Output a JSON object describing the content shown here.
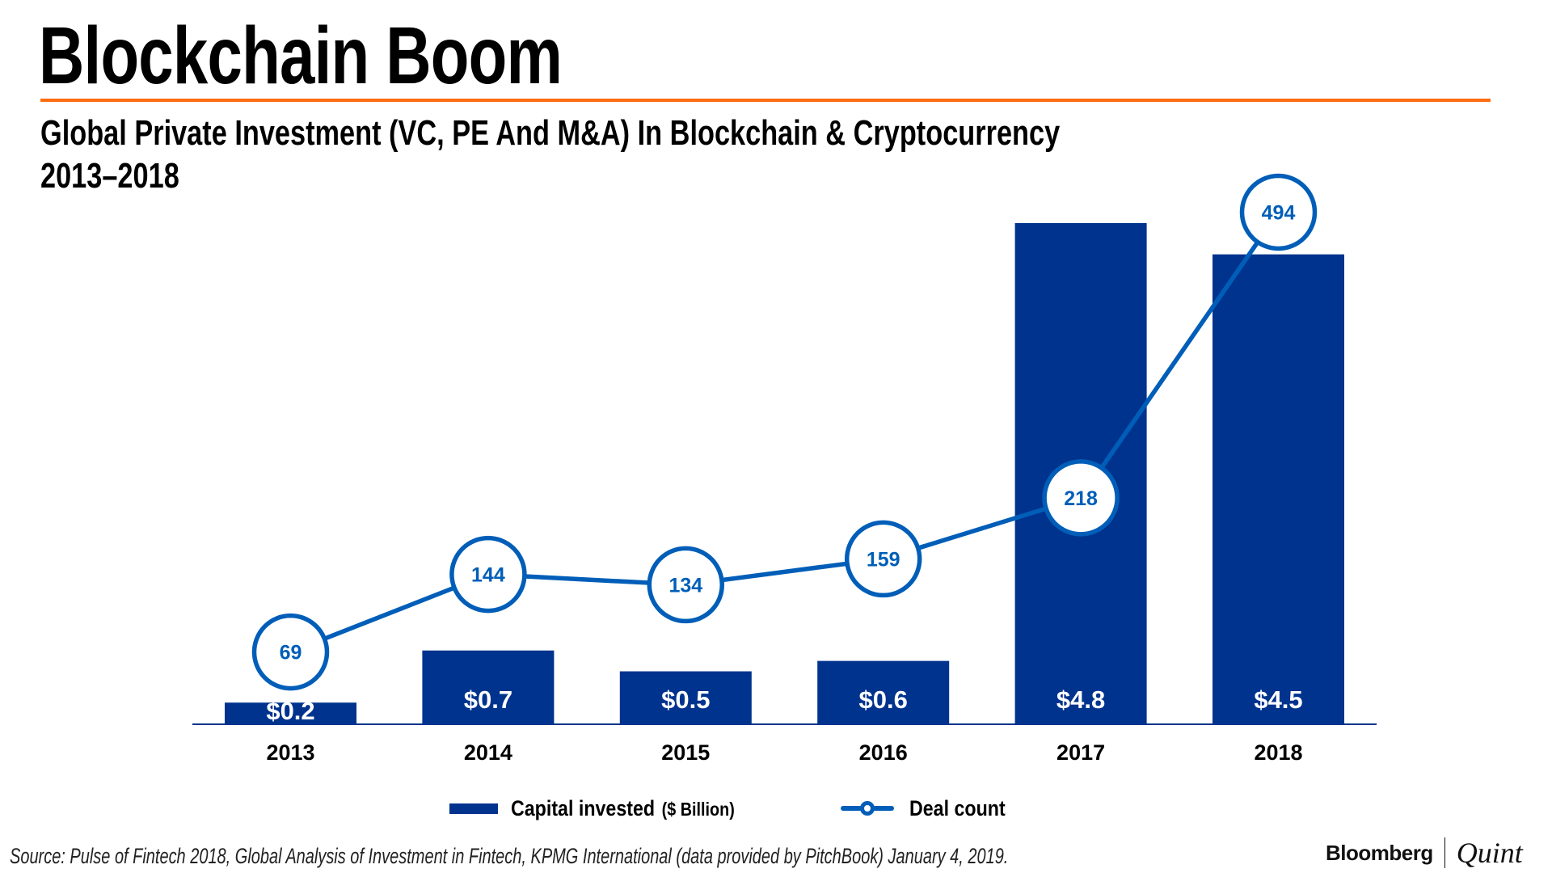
{
  "header": {
    "title": "Blockchain Boom",
    "subtitle_line1": "Global Private Investment (VC, PE And M&A) In Blockchain & Cryptocurrency",
    "subtitle_line2": "2013–2018"
  },
  "colors": {
    "accent_rule": "#ff6b0f",
    "bar": "#00338d",
    "line": "#005eb8",
    "bar_label": "#ffffff",
    "axis": "#00338d"
  },
  "chart_data": {
    "type": "bar",
    "title": "Global Private Investment (VC, PE And M&A) In Blockchain & Cryptocurrency 2013–2018",
    "xlabel": "",
    "ylabel": "",
    "categories": [
      "2013",
      "2014",
      "2015",
      "2016",
      "2017",
      "2018"
    ],
    "series": [
      {
        "name": "Capital invested",
        "unit": "($ Billion)",
        "type": "bar",
        "values": [
          0.2,
          0.7,
          0.5,
          0.6,
          4.8,
          4.5
        ],
        "labels": [
          "$0.2",
          "$0.7",
          "$0.5",
          "$0.6",
          "$4.8",
          "$4.5"
        ]
      },
      {
        "name": "Deal count",
        "type": "line",
        "values": [
          69,
          144,
          134,
          159,
          218,
          494
        ],
        "labels": [
          "69",
          "144",
          "134",
          "159",
          "218",
          "494"
        ]
      }
    ],
    "ylim_bar": [
      0,
      6.94
    ],
    "ylim_line": [
      0,
      699
    ],
    "grid": false,
    "legend_position": "bottom-center"
  },
  "legend": {
    "bar_label": "Capital invested",
    "bar_unit": "($ Billion)",
    "line_label": "Deal count"
  },
  "footer": {
    "source": "Source: Pulse of Fintech 2018, Global Analysis of Investment in Fintech, KPMG International (data provided by PitchBook) January 4, 2019.",
    "logo_left": "Bloomberg",
    "logo_right": "Quint"
  }
}
